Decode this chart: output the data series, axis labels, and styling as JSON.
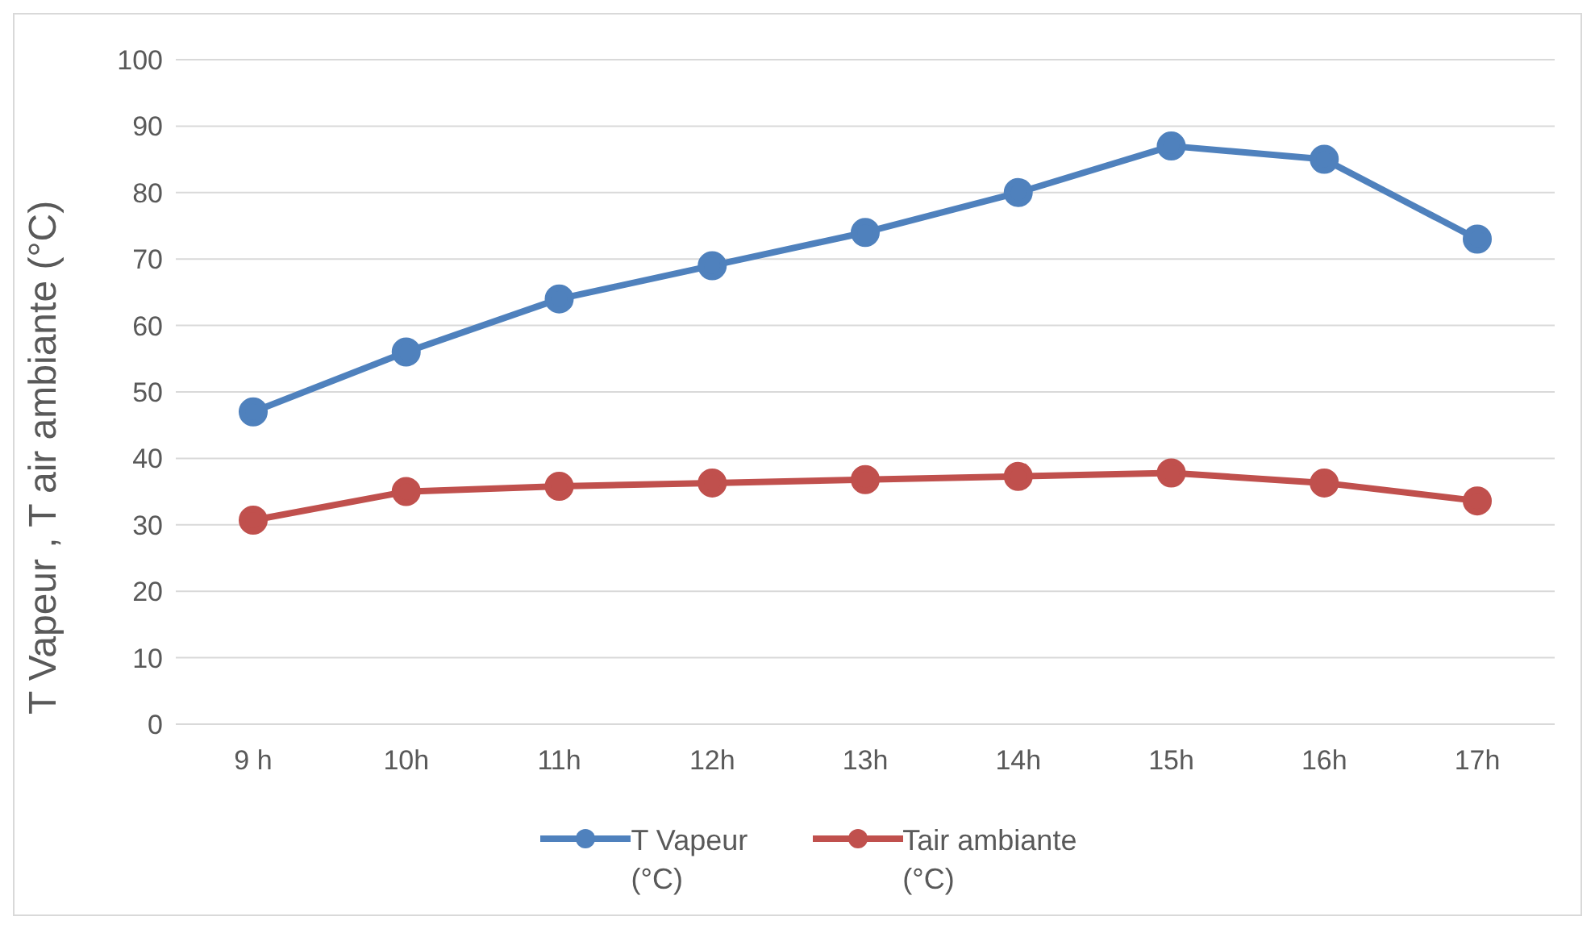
{
  "chart_data": {
    "type": "line",
    "ylabel": "T Vapeur , T air ambiante (°C)",
    "categories": [
      "9 h",
      "10h",
      "11h",
      "12h",
      "13h",
      "14h",
      "15h",
      "16h",
      "17h"
    ],
    "series": [
      {
        "name": "T Vapeur (°C)",
        "color": "#4f81bd",
        "values": [
          47,
          56,
          64,
          69,
          74,
          80,
          87,
          85,
          73
        ]
      },
      {
        "name": "Tair ambiante (°C)",
        "color": "#c0504d",
        "values": [
          30.7,
          35,
          35.8,
          36.3,
          36.8,
          37.3,
          37.8,
          36.3,
          33.6
        ]
      }
    ],
    "ylim": [
      0,
      100
    ],
    "yticks": [
      0,
      10,
      20,
      30,
      40,
      50,
      60,
      70,
      80,
      90,
      100
    ],
    "grid": "y",
    "legend": "bottom",
    "marker": "circle",
    "line_style": "solid"
  }
}
